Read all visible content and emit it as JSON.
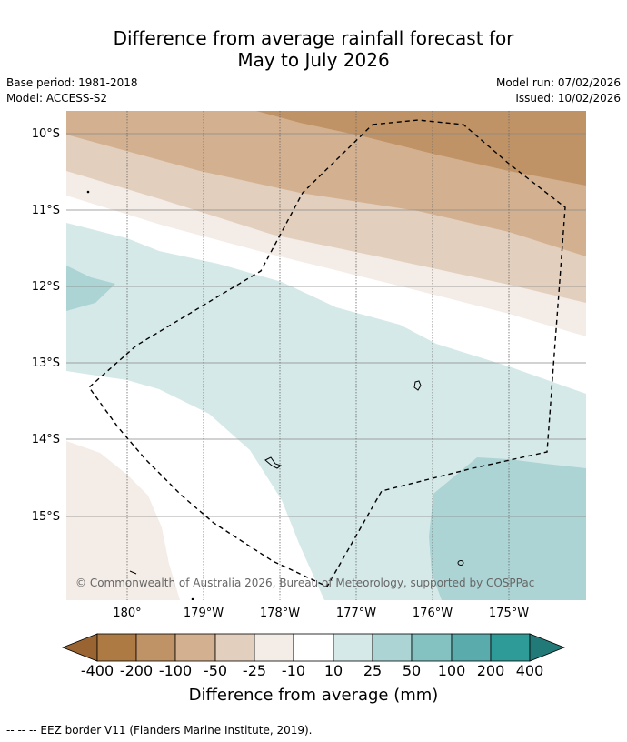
{
  "header": {
    "title_line1": "Difference from average rainfall forecast for",
    "title_line2": "May to July 2026",
    "base_period": "Base period: 1981-2018",
    "model": "Model: ACCESS-S2",
    "model_run": "Model run: 07/02/2026",
    "issued": "Issued: 10/02/2026"
  },
  "map": {
    "lat_labels": [
      "10°S",
      "11°S",
      "12°S",
      "13°S",
      "14°S",
      "15°S"
    ],
    "lon_labels": [
      "180°",
      "179°W",
      "178°W",
      "177°W",
      "176°W",
      "175°W"
    ],
    "copyright": "© Commonwealth of Australia 2026, Bureau of Meteorology, supported by COSPPac"
  },
  "colorbar": {
    "ticks": [
      "-400",
      "-200",
      "-100",
      "-50",
      "-25",
      "-10",
      "10",
      "25",
      "50",
      "100",
      "200",
      "400"
    ],
    "colors": {
      "extend_low": "#9a6432",
      "c1": "#ad7a43",
      "c2": "#c09366",
      "c3": "#d3b190",
      "c4": "#e3cfbd",
      "c5": "#f4ece6",
      "c6": "#ffffff",
      "c7": "#d5e9e8",
      "c8": "#acd4d4",
      "c9": "#84c1c1",
      "c10": "#5aacac",
      "c11": "#2f9b98",
      "extend_high": "#227a78"
    },
    "label": "Difference from average (mm)"
  },
  "footnote": "--  --  -- EEZ border V11 (Flanders Marine Institute, 2019)."
}
